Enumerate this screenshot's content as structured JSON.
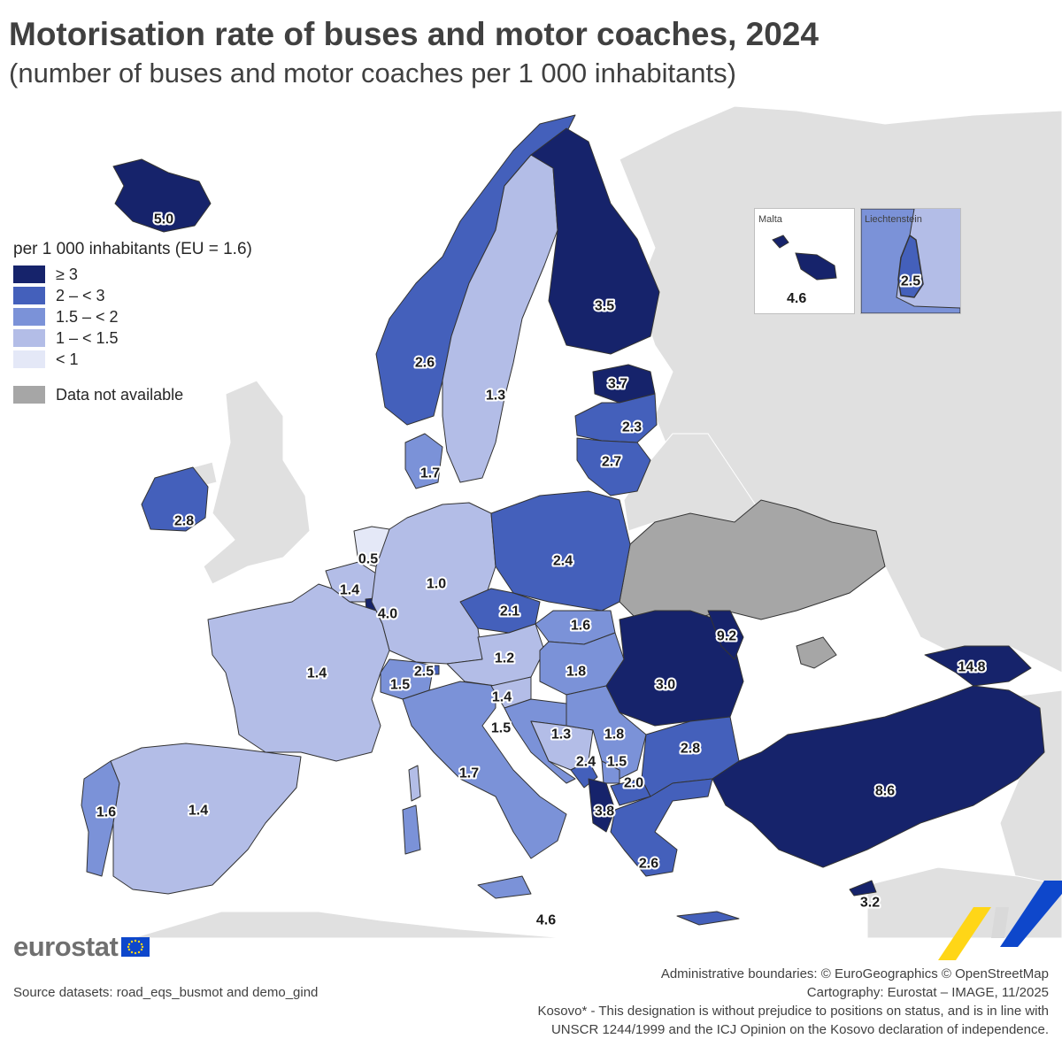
{
  "title": "Motorisation rate of buses and motor coaches, 2024",
  "subtitle": "(number of buses and motor coaches per 1 000 inhabitants)",
  "legend": {
    "title": "per 1 000 inhabitants (EU = 1.6)",
    "classes": [
      {
        "label": "≥ 3",
        "color": "#16236b"
      },
      {
        "label": "2 – < 3",
        "color": "#4460bb"
      },
      {
        "label": "1.5 – < 2",
        "color": "#7b92d8"
      },
      {
        "label": "1 – < 1.5",
        "color": "#b3bde7"
      },
      {
        "label": "< 1",
        "color": "#e4e8f7"
      }
    ],
    "na": {
      "label": "Data not available",
      "color": "#a6a6a6"
    }
  },
  "colors": {
    "sea": "#ffffff",
    "non_covered": "#e0e0e0",
    "border": "#333333"
  },
  "countries": [
    {
      "name": "Iceland",
      "value": "5.0"
    },
    {
      "name": "Norway",
      "value": "2.6"
    },
    {
      "name": "Sweden",
      "value": "1.3"
    },
    {
      "name": "Finland",
      "value": "3.5"
    },
    {
      "name": "Estonia",
      "value": "3.7"
    },
    {
      "name": "Latvia",
      "value": "2.3"
    },
    {
      "name": "Lithuania",
      "value": "2.7"
    },
    {
      "name": "Denmark",
      "value": "1.7"
    },
    {
      "name": "Ireland",
      "value": "2.8"
    },
    {
      "name": "Netherlands",
      "value": "0.5"
    },
    {
      "name": "Belgium",
      "value": "1.4"
    },
    {
      "name": "Luxembourg",
      "value": "4.0"
    },
    {
      "name": "Germany",
      "value": "1.0"
    },
    {
      "name": "Poland",
      "value": "2.4"
    },
    {
      "name": "Czechia",
      "value": "2.1"
    },
    {
      "name": "Slovakia",
      "value": "1.6"
    },
    {
      "name": "Austria",
      "value": "1.2"
    },
    {
      "name": "Hungary",
      "value": "1.8"
    },
    {
      "name": "Romania",
      "value": "3.0"
    },
    {
      "name": "Moldova",
      "value": "9.2"
    },
    {
      "name": "Georgia",
      "value": "14.8"
    },
    {
      "name": "France",
      "value": "1.4"
    },
    {
      "name": "Switzerland",
      "value": "1.5"
    },
    {
      "name": "Liechtenstein",
      "value": "2.5"
    },
    {
      "name": "Slovenia",
      "value": "1.4"
    },
    {
      "name": "Croatia",
      "value": "1.5"
    },
    {
      "name": "Bosnia and Herzegovina",
      "value": "1.3"
    },
    {
      "name": "Serbia",
      "value": "1.8"
    },
    {
      "name": "Montenegro",
      "value": "2.4"
    },
    {
      "name": "Kosovo",
      "value": "1.5"
    },
    {
      "name": "North Macedonia",
      "value": "2.0"
    },
    {
      "name": "Albania",
      "value": "3.8"
    },
    {
      "name": "Bulgaria",
      "value": "2.8"
    },
    {
      "name": "Greece",
      "value": "2.6"
    },
    {
      "name": "Türkiye",
      "value": "8.6"
    },
    {
      "name": "Cyprus",
      "value": "3.2"
    },
    {
      "name": "Italy",
      "value": "1.7"
    },
    {
      "name": "Malta",
      "value": "4.6"
    },
    {
      "name": "Portugal",
      "value": "1.6"
    },
    {
      "name": "Spain",
      "value": "1.4"
    }
  ],
  "insets": {
    "malta_name": "Malta",
    "malta_value": "4.6",
    "liechtenstein_name": "Liechtenstein",
    "liechtenstein_value": "2.5"
  },
  "logo": {
    "word": "eurostat"
  },
  "source": "Source datasets: road_eqs_busmot and demo_gind",
  "footer": {
    "boundaries": "Administrative boundaries: © EuroGeographics © OpenStreetMap",
    "cartography": "Cartography: Eurostat – IMAGE, 11/2025",
    "kosovo_line1": "Kosovo* - This designation is without prejudice to positions on status, and is in line with",
    "kosovo_line2": "UNSCR 1244/1999 and the ICJ Opinion on the Kosovo declaration of independence."
  }
}
